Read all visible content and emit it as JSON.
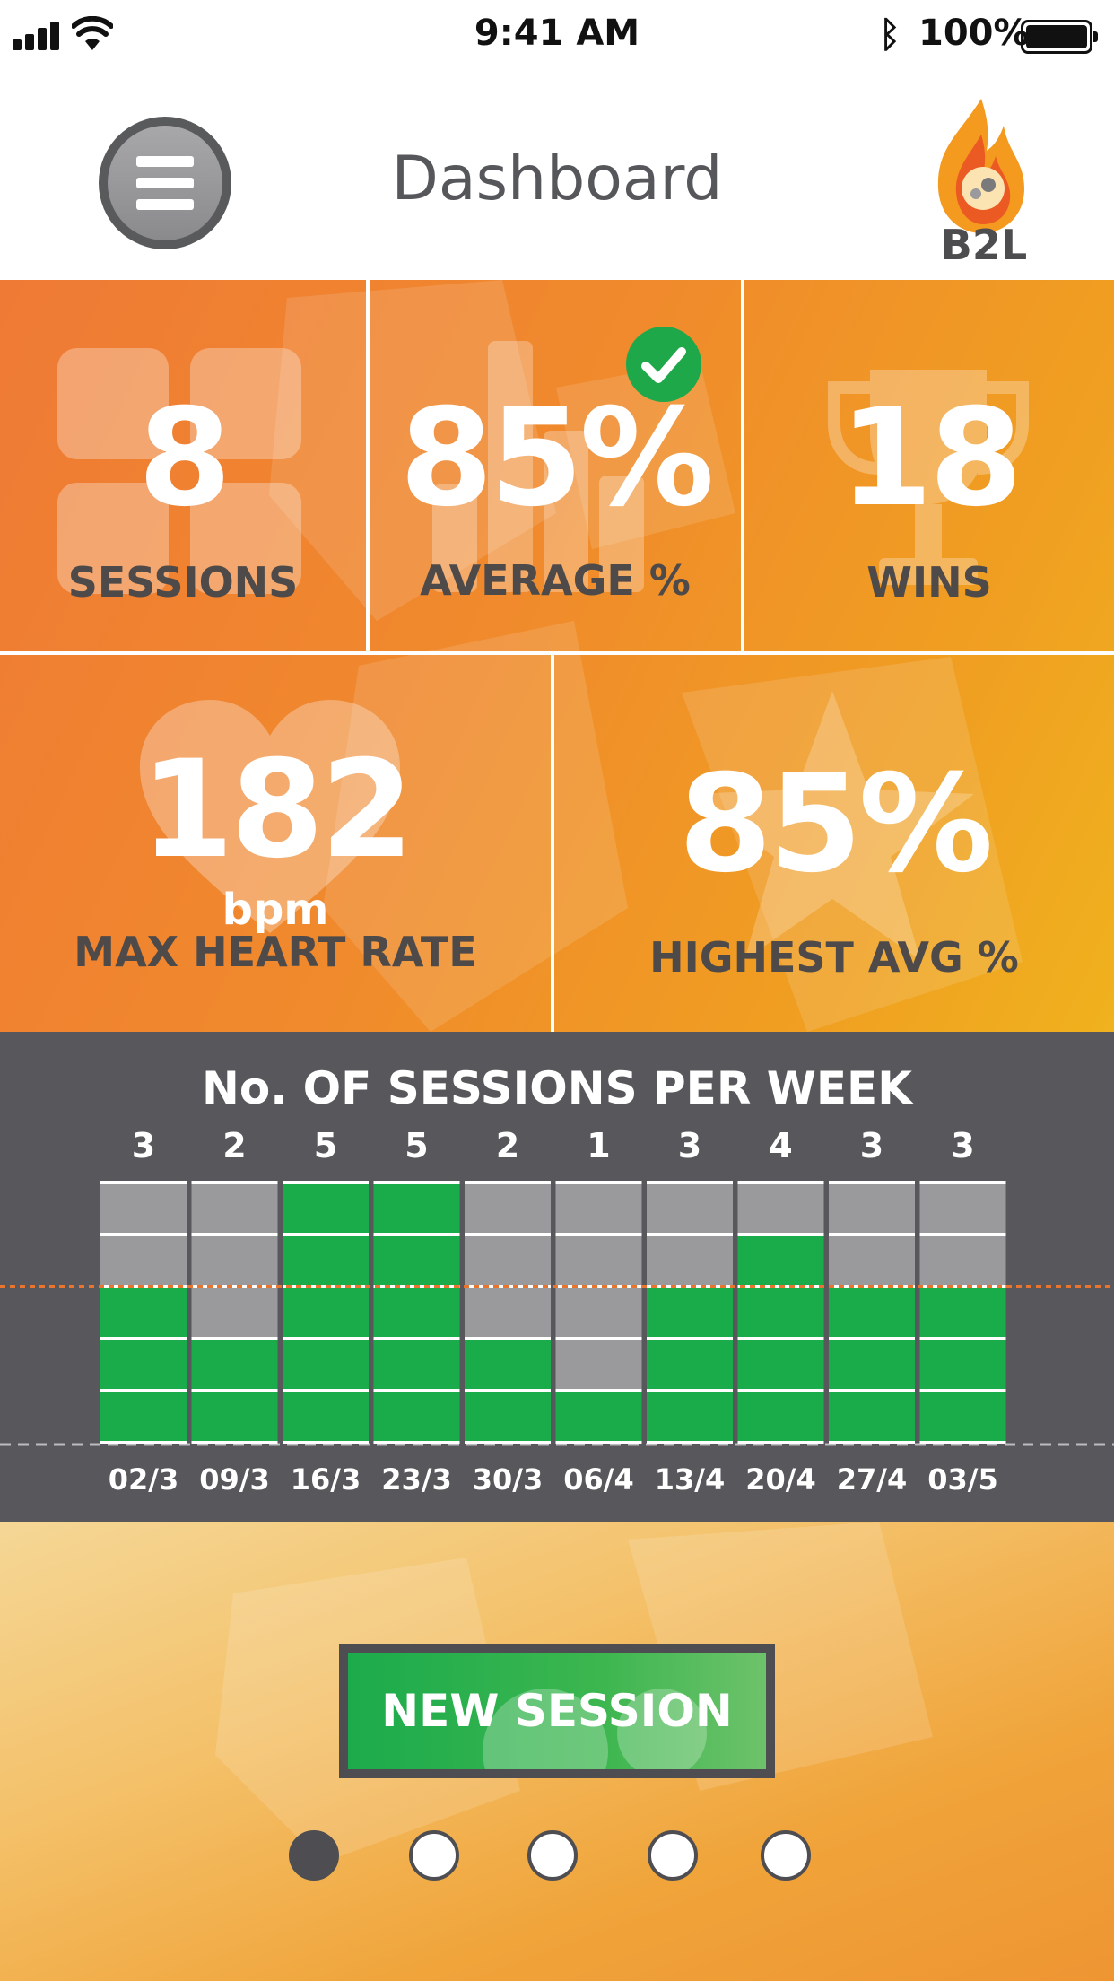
{
  "status_bar": {
    "time": "9:41 AM",
    "bluetooth_icon": "ᛒ",
    "battery_percent": "100%"
  },
  "header": {
    "title": "Dashboard",
    "logo_text": "B2L",
    "menu_icon": "hamburger-menu-icon"
  },
  "tiles": {
    "sessions": {
      "value": "8",
      "label": "SESSIONS"
    },
    "average": {
      "value": "85%",
      "label": "AVERAGE %",
      "badge_icon": "check-icon"
    },
    "wins": {
      "value": "18",
      "label": "WINS"
    },
    "max_heart_rate": {
      "value": "182",
      "unit": "bpm",
      "label": "MAX HEART RATE"
    },
    "highest_avg": {
      "value": "85%",
      "label": "HIGHEST AVG %"
    }
  },
  "chart_data": {
    "type": "bar",
    "title": "No. OF SESSIONS PER WEEK",
    "categories": [
      "02/3",
      "09/3",
      "16/3",
      "23/3",
      "30/3",
      "06/4",
      "13/4",
      "20/4",
      "27/4",
      "03/5"
    ],
    "values": [
      3,
      2,
      5,
      5,
      2,
      1,
      3,
      4,
      3,
      3
    ],
    "ylim": [
      0,
      5
    ],
    "target": 3,
    "colors": {
      "filled": "#1aab4b",
      "empty": "#9a9a9c",
      "target_line": "#e8742e",
      "background": "#58585c"
    }
  },
  "bottom": {
    "new_session_label": "NEW SESSION",
    "pages": 5,
    "active_page": 1
  }
}
